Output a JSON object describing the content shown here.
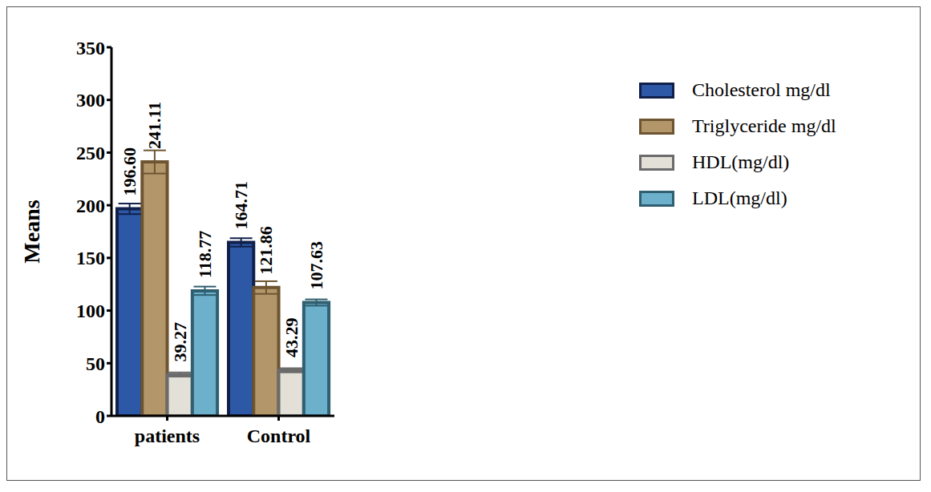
{
  "chart_data": {
    "type": "bar",
    "categories": [
      "patients",
      "Control"
    ],
    "y_label": "Means",
    "ylim": [
      0,
      350
    ],
    "yticks": [
      0,
      50,
      100,
      150,
      200,
      250,
      300,
      350
    ],
    "grid": false,
    "legend": "right",
    "data_labels": true,
    "series": [
      {
        "name": "Cholesterol mg/dl",
        "color": "#2c58a6",
        "values": [
          196.6,
          164.71
        ],
        "value_labels": [
          "196.60",
          "164.71"
        ],
        "errors": [
          5,
          4
        ]
      },
      {
        "name": "Triglyceride mg/dl",
        "color": "#b3966a",
        "values": [
          241.11,
          121.86
        ],
        "value_labels": [
          "241.11",
          "121.86"
        ],
        "errors": [
          11,
          6
        ]
      },
      {
        "name": "HDL(mg/dl)",
        "color": "#e3e0d8",
        "values": [
          39.27,
          43.29
        ],
        "value_labels": [
          "39.27",
          "43.29"
        ],
        "errors": [
          2,
          2
        ]
      },
      {
        "name": "LDL(mg/dl)",
        "color": "#6db0cc",
        "values": [
          118.77,
          107.63
        ],
        "value_labels": [
          "118.77",
          "107.63"
        ],
        "errors": [
          4,
          3
        ]
      }
    ]
  }
}
